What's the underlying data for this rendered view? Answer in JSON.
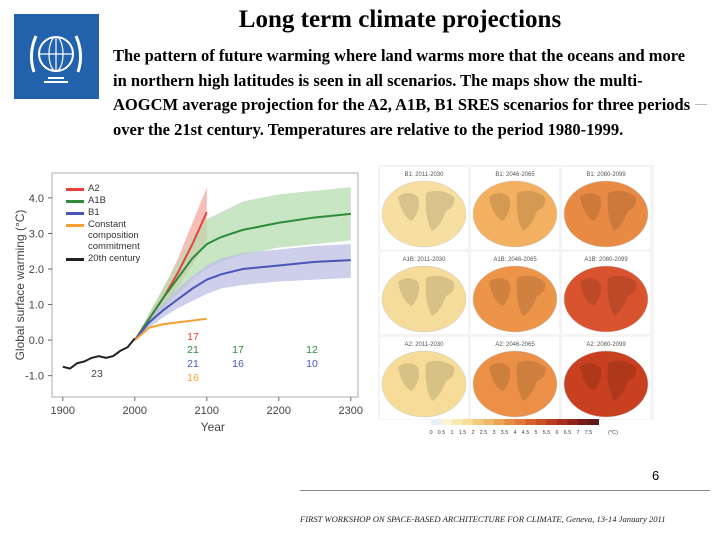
{
  "slide": {
    "title": "Long term climate projections",
    "body": "The pattern of future warming where land warms more that the oceans and more in northern high latitudes is seen in all scenarios. The maps show the multi-AOGCM average projection for the A2, A1B, B1 SRES scenarios for three periods over the 21st century. Temperatures are relative to the period 1980-1999.",
    "page_number": "6",
    "footer": "FIRST WORKSHOP ON SPACE-BASED ARCHITECTURE FOR CLIMATE, Geneva, 13-14 January 2011"
  },
  "chart_data": {
    "type": "line",
    "xlabel": "Year",
    "ylabel": "Global surface warming (°C)",
    "xlim": [
      1885,
      2310
    ],
    "ylim": [
      -1.6,
      4.7
    ],
    "xticks": [
      1900,
      2000,
      2100,
      2200,
      2300
    ],
    "yticks": [
      {
        "value": -1,
        "label": "-1.0"
      },
      {
        "value": 0,
        "label": "0.0"
      },
      {
        "value": 1,
        "label": "1.0"
      },
      {
        "value": 2,
        "label": "2.0"
      },
      {
        "value": 3,
        "label": "3.0"
      },
      {
        "value": 4,
        "label": "4.0"
      }
    ],
    "series": [
      {
        "name": "A2",
        "color": "#e8413c",
        "band_color": "#f4a8a2",
        "x": [
          2000,
          2020,
          2040,
          2060,
          2080,
          2100
        ],
        "values": [
          0,
          0.6,
          1.2,
          1.9,
          2.7,
          3.6
        ],
        "lower": [
          0,
          0.45,
          0.95,
          1.5,
          2.1,
          2.8
        ],
        "upper": [
          0,
          0.75,
          1.45,
          2.3,
          3.3,
          4.3
        ]
      },
      {
        "name": "A1B",
        "color": "#2e8b3c",
        "band_color": "#b5dcb0",
        "x": [
          2000,
          2020,
          2040,
          2060,
          2080,
          2100,
          2120,
          2150,
          2200,
          2250,
          2300
        ],
        "values": [
          0,
          0.6,
          1.2,
          1.75,
          2.3,
          2.7,
          2.9,
          3.1,
          3.3,
          3.45,
          3.55
        ],
        "lower": [
          0,
          0.45,
          0.9,
          1.3,
          1.7,
          2.0,
          2.2,
          2.4,
          2.6,
          2.7,
          2.8
        ],
        "upper": [
          0,
          0.75,
          1.5,
          2.2,
          2.9,
          3.4,
          3.6,
          3.9,
          4.1,
          4.2,
          4.3
        ]
      },
      {
        "name": "B1",
        "color": "#4a55b8",
        "band_color": "#bcbfe4",
        "x": [
          2000,
          2020,
          2040,
          2060,
          2080,
          2100,
          2120,
          2150,
          2200,
          2250,
          2300
        ],
        "values": [
          0,
          0.5,
          0.85,
          1.15,
          1.45,
          1.7,
          1.85,
          2.0,
          2.1,
          2.2,
          2.25
        ],
        "lower": [
          0,
          0.35,
          0.65,
          0.9,
          1.1,
          1.3,
          1.45,
          1.55,
          1.65,
          1.7,
          1.75
        ],
        "upper": [
          0,
          0.65,
          1.05,
          1.45,
          1.8,
          2.1,
          2.3,
          2.45,
          2.55,
          2.65,
          2.7
        ]
      },
      {
        "name": "Constant composition commitment",
        "color": "#f5a030",
        "x": [
          2000,
          2020,
          2040,
          2060,
          2080,
          2100
        ],
        "values": [
          0,
          0.35,
          0.45,
          0.5,
          0.55,
          0.6
        ]
      },
      {
        "name": "20th century",
        "color": "#222222",
        "x": [
          1900,
          1910,
          1920,
          1930,
          1940,
          1950,
          1960,
          1970,
          1980,
          1990,
          2000
        ],
        "values": [
          -0.75,
          -0.8,
          -0.65,
          -0.6,
          -0.5,
          -0.45,
          -0.5,
          -0.45,
          -0.3,
          -0.2,
          0.05
        ]
      }
    ],
    "annotations": [
      {
        "text": "17",
        "color": "#e8413c"
      },
      {
        "text": "21",
        "color": "#2e8b3c"
      },
      {
        "text": "21",
        "color": "#4a55b8"
      },
      {
        "text": "16",
        "color": "#f5a030"
      },
      {
        "text": "17",
        "color": "#2e8b3c"
      },
      {
        "text": "16",
        "color": "#4a55b8"
      },
      {
        "text": "12",
        "color": "#2e8b3c"
      },
      {
        "text": "10",
        "color": "#4a55b8"
      },
      {
        "text": "23",
        "color": "#444444"
      }
    ]
  },
  "maps": {
    "panels": [
      {
        "title": "B1: 2011-2030",
        "color": "#f6dfa0"
      },
      {
        "title": "B1: 2046-2065",
        "color": "#f2b060"
      },
      {
        "title": "B1: 2080-2099",
        "color": "#e98a44"
      },
      {
        "title": "A1B: 2011-2030",
        "color": "#f6dc9a"
      },
      {
        "title": "A1B: 2046-2065",
        "color": "#ec9448"
      },
      {
        "title": "A1B: 2080-2099",
        "color": "#d9542e"
      },
      {
        "title": "A2: 2011-2030",
        "color": "#f6dc98"
      },
      {
        "title": "A2: 2046-2065",
        "color": "#eb9046"
      },
      {
        "title": "A2: 2080-2099",
        "color": "#c8401f"
      }
    ],
    "scale_labels": [
      "0",
      "0.5",
      "1",
      "1.5",
      "2",
      "2.5",
      "3",
      "3.5",
      "4",
      "4.5",
      "5",
      "5.5",
      "6",
      "6.5",
      "7",
      "7.5",
      "(°C)"
    ],
    "scale_colors": [
      "#e6eef6",
      "#fbf4d0",
      "#f8e8b0",
      "#f6dc98",
      "#f3cb80",
      "#f0b868",
      "#eca456",
      "#e78e46",
      "#e0783a",
      "#d8622e",
      "#cc4e26",
      "#bc3c20",
      "#a82e1e",
      "#90241c",
      "#781c1a",
      "#601818"
    ]
  }
}
